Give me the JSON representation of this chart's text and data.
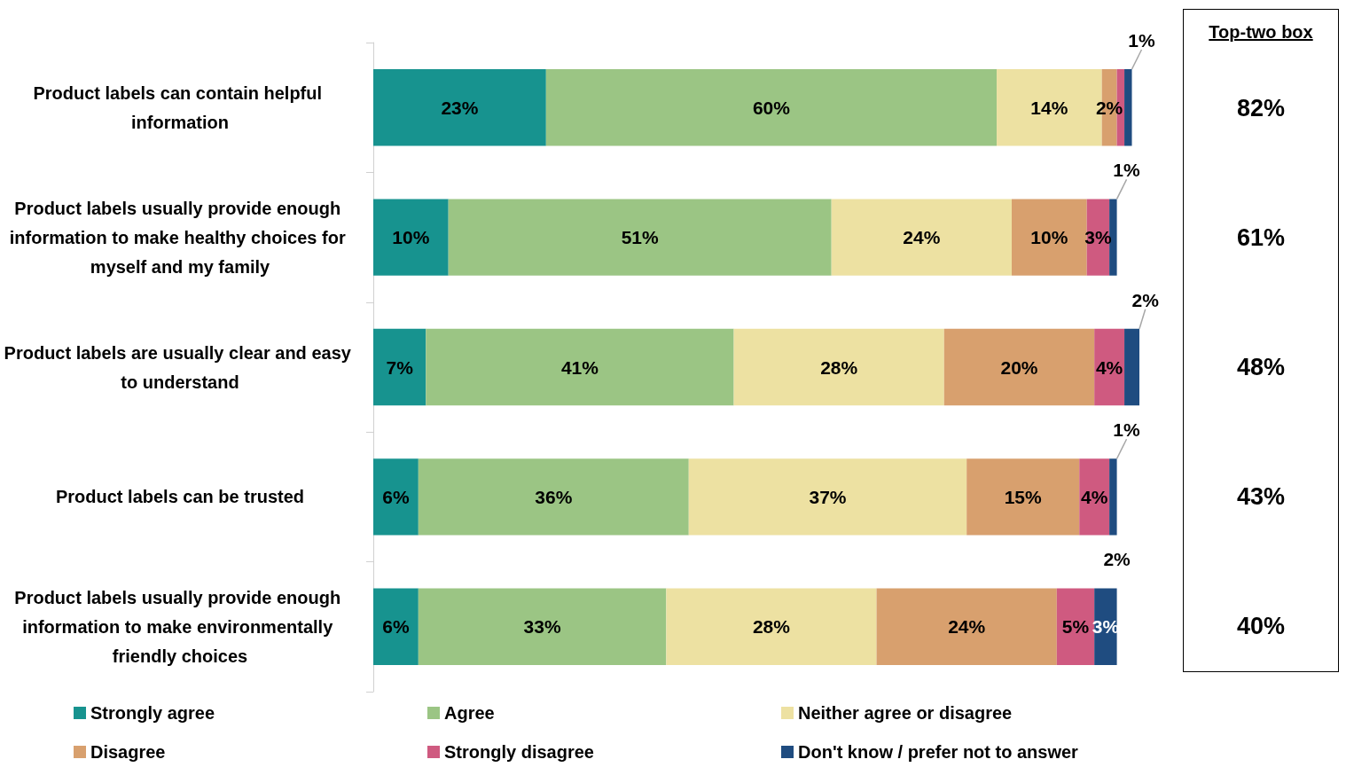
{
  "chart_data": [
    {
      "type": "bar",
      "orientation": "horizontal",
      "stacked": true,
      "legend": "bottom",
      "categories": [
        "Product labels can contain helpful information",
        "Product labels usually provide enough information to make healthy choices for myself and my family",
        "Product labels are usually clear and easy to understand",
        "Product labels can be trusted",
        "Product labels usually provide enough information to make environmentally friendly choices"
      ],
      "series": [
        {
          "name": "Strongly agree",
          "color": "#17938f",
          "values": [
            23,
            10,
            7,
            6,
            6
          ],
          "value_labels": [
            "23%",
            "10%",
            "7%",
            "6%",
            "6%"
          ]
        },
        {
          "name": "Agree",
          "color": "#9bc584",
          "values": [
            60,
            51,
            41,
            36,
            33
          ],
          "value_labels": [
            "60%",
            "51%",
            "41%",
            "36%",
            "33%"
          ]
        },
        {
          "name": "Neither agree or disagree",
          "color": "#ede1a2",
          "values": [
            14,
            24,
            28,
            37,
            28
          ],
          "value_labels": [
            "14%",
            "24%",
            "28%",
            "37%",
            "28%"
          ]
        },
        {
          "name": "Disagree",
          "color": "#d8a06e",
          "values": [
            2,
            10,
            20,
            15,
            24
          ],
          "value_labels": [
            "2%",
            "10%",
            "20%",
            "15%",
            "24%"
          ]
        },
        {
          "name": "Strongly disagree",
          "color": "#cf5a80",
          "values": [
            1,
            3,
            4,
            4,
            5
          ],
          "value_labels": [
            null,
            "3%",
            "4%",
            "4%",
            "5%"
          ]
        },
        {
          "name": "Don't know / prefer not to answer",
          "color": "#1f4c80",
          "values": [
            1,
            1,
            2,
            1,
            3
          ],
          "value_labels": [
            "1%",
            "1%",
            "2%",
            "1%",
            "3%"
          ]
        }
      ],
      "annotations": [
        "2%"
      ]
    },
    {
      "type": "other",
      "title": "Top-two box",
      "annotations": [
        "82%",
        "61%",
        "48%",
        "43%",
        "40%"
      ]
    }
  ]
}
